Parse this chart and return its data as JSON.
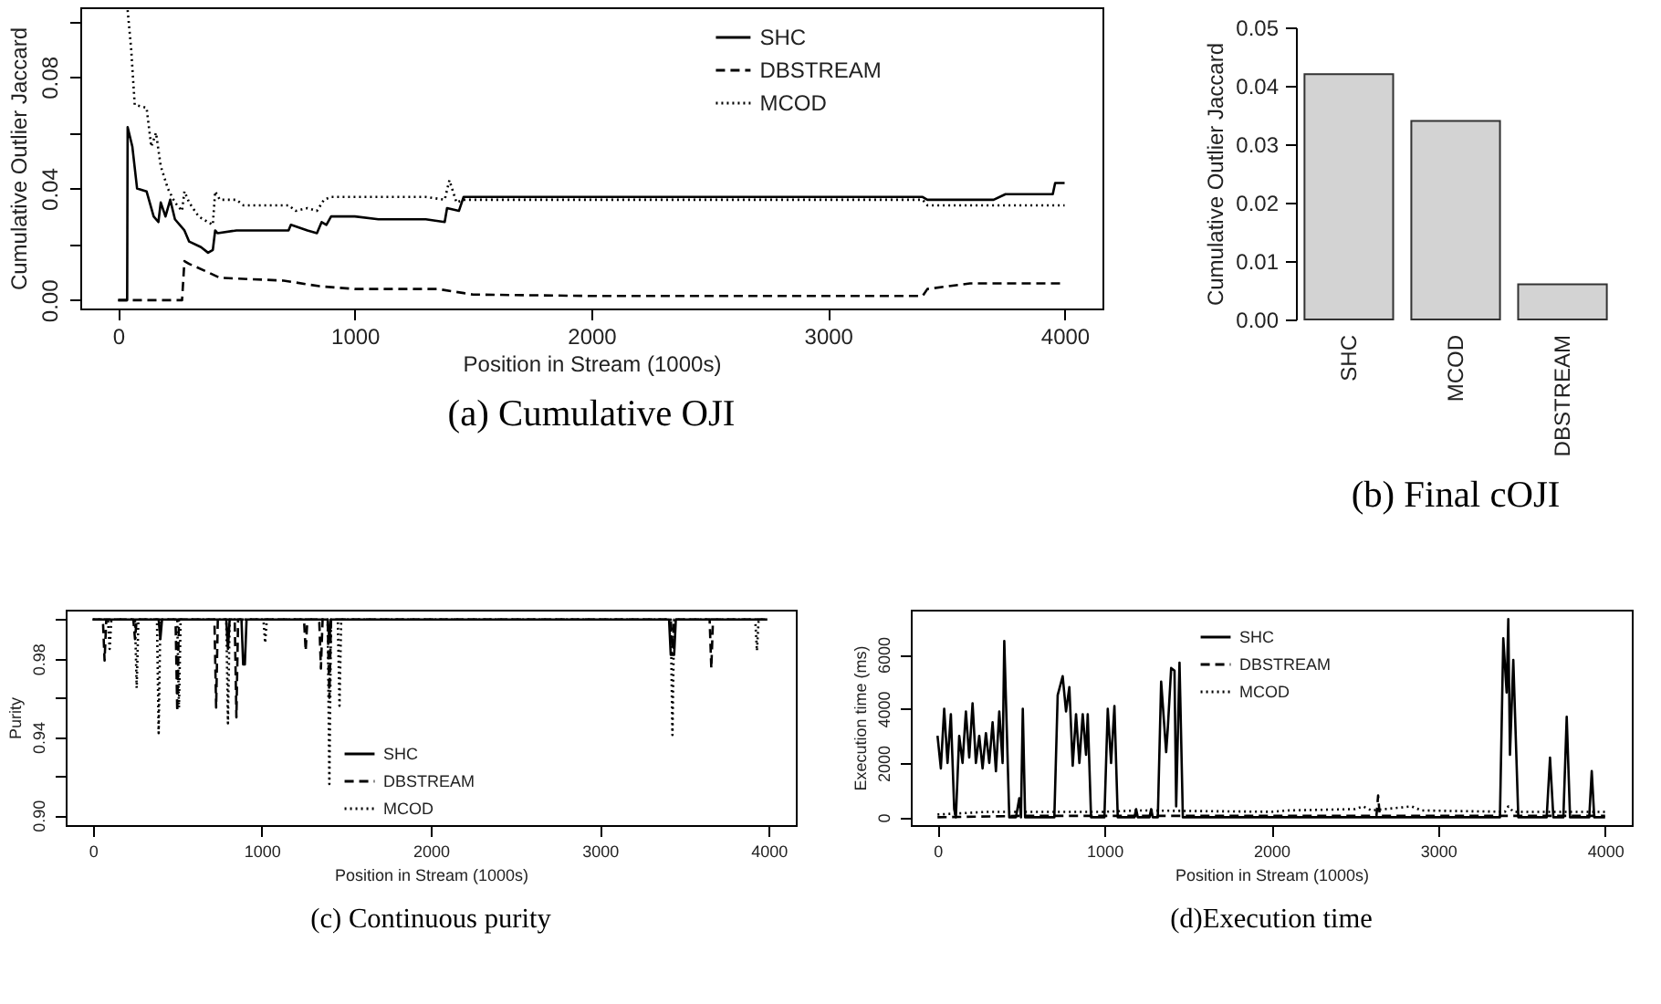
{
  "chart_data": [
    {
      "type": "line",
      "title": "(a) Cumulative OJI",
      "xlabel": "Position in Stream (1000s)",
      "ylabel": "Cumulative Outlier Jaccard",
      "xlim": [
        -160,
        4160
      ],
      "ylim": [
        -0.003,
        0.105
      ],
      "xticks": [
        0,
        1000,
        2000,
        3000,
        4000
      ],
      "yticks": [
        {
          "value": 0,
          "label": "0.00"
        },
        {
          "value": 0.02,
          "label": null
        },
        {
          "value": 0.04,
          "label": "0.04"
        },
        {
          "value": 0.06,
          "label": null
        },
        {
          "value": 0.08,
          "label": "0.08"
        },
        {
          "value": 0.1,
          "label": null
        }
      ],
      "legend": "top right",
      "series": [
        {
          "name": "SHC",
          "color": "#000000",
          "line_style": "solid",
          "x": [
            0,
            38,
            40,
            60,
            80,
            120,
            150,
            170,
            180,
            200,
            220,
            240,
            280,
            300,
            350,
            380,
            400,
            410,
            420,
            500,
            720,
            730,
            800,
            840,
            860,
            880,
            900,
            1000,
            1100,
            1300,
            1380,
            1390,
            1440,
            1460,
            3400,
            3420,
            3700,
            3750,
            3950,
            3960,
            4000
          ],
          "values": [
            0,
            0,
            0.062,
            0.055,
            0.04,
            0.039,
            0.03,
            0.028,
            0.035,
            0.03,
            0.036,
            0.029,
            0.025,
            0.021,
            0.019,
            0.017,
            0.018,
            0.025,
            0.024,
            0.025,
            0.025,
            0.027,
            0.025,
            0.024,
            0.028,
            0.027,
            0.03,
            0.03,
            0.029,
            0.029,
            0.028,
            0.033,
            0.032,
            0.037,
            0.037,
            0.036,
            0.036,
            0.038,
            0.038,
            0.042,
            0.042
          ]
        },
        {
          "name": "DBSTREAM",
          "color": "#000000",
          "line_style": "dashed",
          "x": [
            0,
            270,
            280,
            300,
            380,
            430,
            700,
            850,
            1000,
            1350,
            1500,
            2000,
            3400,
            3420,
            3600,
            4000
          ],
          "values": [
            0,
            0,
            0.014,
            0.013,
            0.01,
            0.008,
            0.007,
            0.005,
            0.004,
            0.004,
            0.002,
            0.0015,
            0.0015,
            0.004,
            0.006,
            0.006
          ]
        },
        {
          "name": "MCOD",
          "color": "#000000",
          "line_style": "dotted",
          "x": [
            40,
            55,
            70,
            120,
            140,
            160,
            180,
            210,
            240,
            270,
            280,
            300,
            340,
            380,
            400,
            410,
            430,
            500,
            530,
            720,
            750,
            800,
            840,
            870,
            900,
            1300,
            1380,
            1400,
            1430,
            1460,
            3400,
            3420,
            4000
          ],
          "values": [
            0.104,
            0.09,
            0.07,
            0.069,
            0.055,
            0.06,
            0.048,
            0.04,
            0.035,
            0.032,
            0.039,
            0.035,
            0.03,
            0.028,
            0.027,
            0.039,
            0.036,
            0.036,
            0.034,
            0.034,
            0.032,
            0.033,
            0.032,
            0.036,
            0.037,
            0.037,
            0.036,
            0.043,
            0.035,
            0.036,
            0.036,
            0.034,
            0.034
          ]
        }
      ]
    },
    {
      "type": "bar",
      "title": "(b) Final cOJI",
      "ylabel": "Cumulative Outlier Jaccard",
      "categories": [
        "SHC",
        "MCOD",
        "DBSTREAM"
      ],
      "values": [
        0.042,
        0.034,
        0.006
      ],
      "color": "#d3d3d3",
      "ylim": [
        0,
        0.05
      ],
      "yticks": [
        {
          "value": 0,
          "label": "0.00"
        },
        {
          "value": 0.01,
          "label": "0.01"
        },
        {
          "value": 0.02,
          "label": "0.02"
        },
        {
          "value": 0.03,
          "label": "0.03"
        },
        {
          "value": 0.04,
          "label": "0.04"
        },
        {
          "value": 0.05,
          "label": "0.05"
        }
      ]
    },
    {
      "type": "line",
      "title": "(c) Continuous purity",
      "xlabel": "Position in Stream (1000s)",
      "ylabel": "Purity",
      "xlim": [
        -160,
        4160
      ],
      "ylim": [
        0.895,
        1.005
      ],
      "xticks": [
        0,
        1000,
        2000,
        3000,
        4000
      ],
      "yticks": [
        {
          "value": 0.9,
          "label": "0.90"
        },
        {
          "value": 0.92,
          "label": null
        },
        {
          "value": 0.94,
          "label": "0.94"
        },
        {
          "value": 0.96,
          "label": null
        },
        {
          "value": 0.98,
          "label": "0.98"
        },
        {
          "value": 1,
          "label": null
        }
      ],
      "legend": "bottom",
      "series": [
        {
          "name": "SHC",
          "color": "#000000",
          "line_style": "solid",
          "x": [
            0,
            390,
            400,
            410,
            790,
            800,
            810,
            880,
            890,
            900,
            910,
            1390,
            1400,
            1410,
            3410,
            3420,
            3440,
            3450,
            3990
          ],
          "values": [
            1,
            1,
            0.99,
            1,
            1,
            0.985,
            1,
            1,
            0.977,
            0.977,
            1,
            1,
            0.99,
            1,
            1,
            0.982,
            0.982,
            1,
            1
          ]
        },
        {
          "name": "DBSTREAM",
          "color": "#000000",
          "line_style": "dashed",
          "x": [
            0,
            60,
            70,
            80,
            240,
            250,
            260,
            490,
            500,
            510,
            720,
            730,
            740,
            840,
            850,
            860,
            1250,
            1260,
            1270,
            1340,
            1350,
            1360,
            1390,
            1400,
            1410,
            3420,
            3430,
            3440,
            3650,
            3660,
            3670,
            3990
          ],
          "values": [
            1,
            1,
            0.979,
            1,
            1,
            0.99,
            1,
            1,
            0.953,
            1,
            1,
            0.955,
            1,
            1,
            0.95,
            1,
            1,
            0.984,
            1,
            1,
            0.975,
            1,
            1,
            0.96,
            1,
            1,
            0.985,
            1,
            1,
            0.975,
            1,
            1
          ]
        },
        {
          "name": "MCOD",
          "color": "#000000",
          "line_style": "dotted",
          "x": [
            0,
            90,
            100,
            110,
            250,
            260,
            270,
            380,
            390,
            400,
            500,
            510,
            520,
            790,
            800,
            810,
            1010,
            1020,
            1030,
            1390,
            1400,
            1410,
            1450,
            1460,
            1470,
            3420,
            3430,
            3440,
            3920,
            3930,
            3940,
            3990
          ],
          "values": [
            1,
            1,
            0.985,
            1,
            1,
            0.965,
            1,
            1,
            0.942,
            1,
            1,
            0.955,
            1,
            1,
            0.947,
            1,
            1,
            0.988,
            1,
            1,
            0.916,
            1,
            1,
            0.956,
            1,
            1,
            0.941,
            1,
            1,
            0.984,
            1,
            1
          ]
        }
      ]
    },
    {
      "type": "line",
      "title": "(d)Execution time",
      "xlabel": "Position in Stream (1000s)",
      "ylabel": "Execution time (ms)",
      "xlim": [
        -160,
        4160
      ],
      "ylim": [
        -290,
        7650
      ],
      "xticks": [
        0,
        1000,
        2000,
        3000,
        4000
      ],
      "yticks": [
        0,
        2000,
        4000,
        6000
      ],
      "legend": "top",
      "series": [
        {
          "name": "SHC",
          "color": "#000000",
          "line_style": "solid",
          "x": [
            0,
            20,
            40,
            60,
            80,
            100,
            110,
            130,
            150,
            170,
            190,
            210,
            230,
            250,
            270,
            290,
            310,
            330,
            350,
            370,
            390,
            400,
            430,
            470,
            490,
            500,
            511,
            525,
            700,
            720,
            750,
            770,
            790,
            810,
            830,
            850,
            870,
            890,
            900,
            920,
            1000,
            1020,
            1040,
            1060,
            1080,
            1180,
            1190,
            1200,
            1270,
            1280,
            1290,
            1320,
            1340,
            1370,
            1380,
            1400,
            1420,
            1430,
            1450,
            1470,
            3370,
            3390,
            3410,
            3420,
            3430,
            3450,
            3480,
            3650,
            3670,
            3690,
            3750,
            3770,
            3790,
            3905,
            3920,
            3935,
            4000
          ],
          "values": [
            3000,
            1800,
            4000,
            2000,
            3800,
            300,
            0,
            3000,
            2000,
            3900,
            2200,
            4200,
            2000,
            3000,
            1800,
            3100,
            2000,
            3500,
            1700,
            3900,
            2000,
            6500,
            0,
            0,
            700,
            0,
            4000,
            0,
            0,
            4500,
            5200,
            3900,
            4800,
            1900,
            3800,
            2000,
            3800,
            2300,
            3800,
            0,
            0,
            4000,
            2000,
            4100,
            0,
            0,
            300,
            0,
            0,
            300,
            0,
            0,
            5000,
            2400,
            3300,
            5500,
            5400,
            400,
            5700,
            0,
            0,
            6600,
            4600,
            7300,
            2300,
            5800,
            0,
            0,
            2200,
            0,
            0,
            3700,
            0,
            0,
            1700,
            0,
            0
          ]
        },
        {
          "name": "DBSTREAM",
          "color": "#000000",
          "line_style": "dashed",
          "x": [
            0,
            500,
            1000,
            2000,
            2630,
            2640,
            2650,
            3000,
            3400,
            4000
          ],
          "values": [
            0,
            50,
            50,
            50,
            50,
            800,
            50,
            50,
            50,
            50
          ]
        },
        {
          "name": "MCOD",
          "color": "#000000",
          "line_style": "dotted",
          "x": [
            0,
            300,
            1000,
            1200,
            2000,
            2100,
            2500,
            2550,
            2600,
            2840,
            2900,
            3400,
            3420,
            3450,
            4000
          ],
          "values": [
            100,
            200,
            200,
            250,
            200,
            250,
            300,
            400,
            250,
            400,
            250,
            200,
            400,
            200,
            200
          ]
        }
      ]
    }
  ]
}
